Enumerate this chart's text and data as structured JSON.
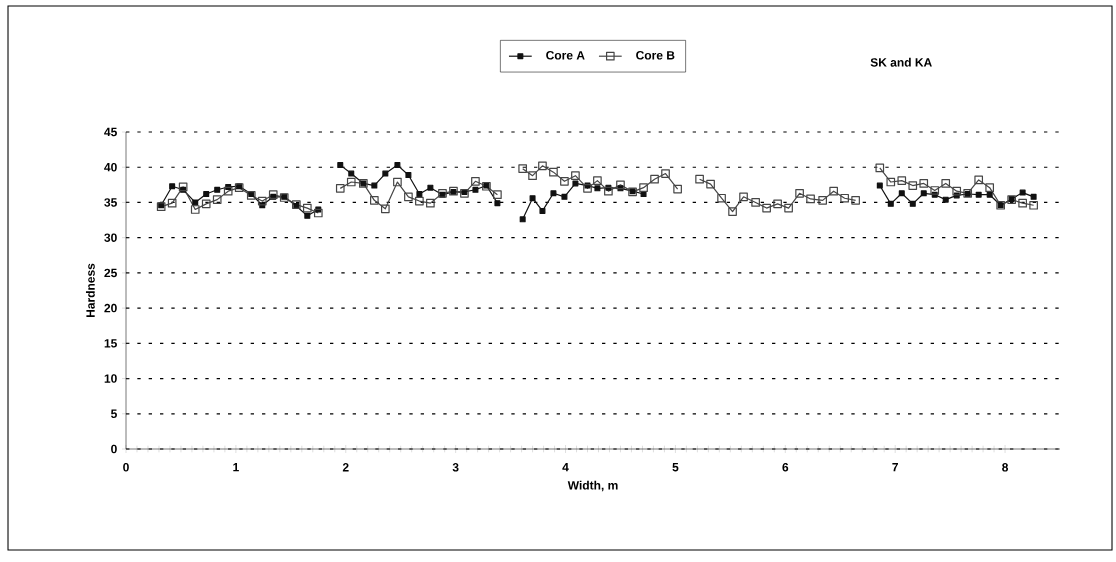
{
  "chart_data": {
    "type": "line",
    "title": "SK and KA",
    "xlabel": "Width, m",
    "ylabel": "Hardness",
    "x": [
      0.32,
      0.42,
      0.52,
      0.63,
      0.73,
      0.83,
      0.93,
      1.03,
      1.14,
      1.24,
      1.34,
      1.44,
      1.55,
      1.65,
      1.75,
      1.85,
      1.95,
      2.05,
      2.16,
      2.26,
      2.36,
      2.47,
      2.57,
      2.67,
      2.77,
      2.88,
      2.98,
      3.08,
      3.18,
      3.28,
      3.38,
      3.5,
      3.61,
      3.7,
      3.79,
      3.89,
      3.99,
      4.09,
      4.2,
      4.29,
      4.39,
      4.5,
      4.61,
      4.71,
      4.81,
      4.91,
      5.02,
      5.12,
      5.22,
      5.32,
      5.42,
      5.52,
      5.62,
      5.73,
      5.83,
      5.93,
      6.03,
      6.13,
      6.23,
      6.34,
      6.44,
      6.54,
      6.64,
      6.75,
      6.86,
      6.96,
      7.06,
      7.16,
      7.26,
      7.36,
      7.46,
      7.56,
      7.66,
      7.76,
      7.86,
      7.96,
      8.06,
      8.16,
      8.26
    ],
    "series": [
      {
        "name": "Core A",
        "color": "#111111",
        "marker": "square",
        "values": [
          34.6,
          37.3,
          36.8,
          35.0,
          36.2,
          36.8,
          37.2,
          37.3,
          36.2,
          34.6,
          35.8,
          35.8,
          34.5,
          33.1,
          34.0,
          null,
          40.3,
          39.1,
          37.7,
          37.4,
          39.1,
          40.3,
          38.9,
          36.2,
          37.1,
          36.1,
          36.5,
          36.5,
          36.8,
          37.4,
          34.9,
          null,
          32.6,
          35.6,
          33.8,
          36.3,
          35.8,
          37.7,
          37.4,
          37.0,
          37.1,
          37.0,
          36.6,
          36.2,
          null,
          null,
          null,
          null,
          null,
          null,
          null,
          null,
          null,
          null,
          null,
          null,
          null,
          null,
          null,
          null,
          null,
          null,
          null,
          null,
          37.4,
          34.8,
          36.3,
          34.8,
          36.3,
          36.1,
          35.4,
          36.0,
          36.2,
          36.1,
          36.1,
          34.6,
          35.5,
          36.4,
          35.8
        ]
      },
      {
        "name": "Core B",
        "color": "#454545",
        "marker": "square",
        "values": [
          34.4,
          34.9,
          37.2,
          34.0,
          34.8,
          35.4,
          36.6,
          37.1,
          36.0,
          35.2,
          36.1,
          35.7,
          34.7,
          34.2,
          33.5,
          null,
          37.0,
          37.9,
          37.7,
          35.3,
          34.1,
          37.9,
          35.8,
          35.2,
          34.9,
          36.3,
          36.6,
          36.3,
          38.0,
          37.3,
          36.1,
          null,
          39.8,
          38.8,
          40.2,
          39.3,
          38.0,
          38.8,
          37.0,
          38.1,
          36.6,
          37.5,
          36.5,
          37.1,
          38.3,
          39.1,
          36.9,
          null,
          38.3,
          37.6,
          35.6,
          33.7,
          35.8,
          35.0,
          34.2,
          34.8,
          34.2,
          36.3,
          35.5,
          35.3,
          36.6,
          35.6,
          35.3,
          null,
          39.9,
          37.9,
          38.1,
          37.4,
          37.7,
          36.7,
          37.7,
          36.6,
          36.3,
          38.2,
          37.1,
          34.6,
          35.4,
          34.9,
          34.6
        ]
      }
    ],
    "xlim": [
      0,
      8.5
    ],
    "xticks": [
      0,
      1,
      2,
      3,
      4,
      5,
      6,
      7,
      8
    ],
    "ylim": [
      0,
      45
    ],
    "yticks": [
      0,
      5,
      10,
      15,
      20,
      25,
      30,
      35,
      40,
      45
    ],
    "grid": "y",
    "legend": "top",
    "line_style": "solid"
  }
}
